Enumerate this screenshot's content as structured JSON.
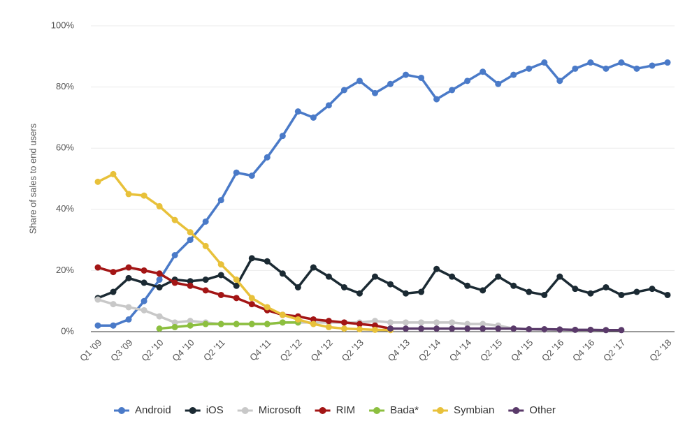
{
  "chart_data": {
    "type": "line",
    "y_label": "Share of sales to end users",
    "categories": [
      "Q1 '09",
      null,
      "Q3 '09",
      null,
      "Q2 '10",
      null,
      "Q4 '10",
      null,
      "Q2 '11",
      null,
      null,
      "Q4 '11",
      null,
      "Q2 '12",
      null,
      "Q4 '12",
      null,
      "Q2 '13",
      null,
      null,
      "Q4 '13",
      null,
      "Q2 '14",
      null,
      "Q4 '14",
      null,
      "Q2 '15",
      null,
      "Q4 '15",
      null,
      "Q2 '16",
      null,
      "Q4 '16",
      null,
      "Q2 '17",
      null,
      null,
      "Q2 '18"
    ],
    "ylim": [
      0,
      100
    ],
    "yticks": [
      {
        "value": 0,
        "label": "0%"
      },
      {
        "value": 20,
        "label": "20%"
      },
      {
        "value": 40,
        "label": "40%"
      },
      {
        "value": 60,
        "label": "60%"
      },
      {
        "value": 80,
        "label": "80%"
      },
      {
        "value": 100,
        "label": "100%"
      }
    ],
    "grid": true,
    "legend": "bottom",
    "series": [
      {
        "name": "Android",
        "color": "#4a7ac8",
        "values": [
          2,
          2,
          4,
          10,
          17,
          25,
          30,
          36,
          43,
          52,
          51,
          57,
          64,
          72,
          70,
          74,
          79,
          82,
          78,
          81,
          84,
          83,
          76,
          79,
          82,
          85,
          81,
          84,
          86,
          88,
          82,
          86,
          88,
          86,
          88,
          86,
          87,
          88
        ]
      },
      {
        "name": "iOS",
        "color": "#1b2a33",
        "values": [
          11,
          13,
          17.5,
          16,
          14.5,
          17,
          16.5,
          17,
          18.5,
          15,
          24,
          23,
          19,
          14.5,
          21,
          18,
          14.5,
          12.5,
          18,
          15.5,
          12.5,
          13,
          20.5,
          18,
          15,
          13.5,
          18,
          15,
          13,
          12,
          18,
          14,
          12.5,
          14.5,
          12,
          13,
          14,
          12
        ]
      },
      {
        "name": "Microsoft",
        "color": "#c8c8c8",
        "values": [
          10.5,
          9,
          8,
          7,
          5,
          3,
          3.5,
          3,
          2.5,
          2.5,
          2.5,
          2.5,
          3,
          3,
          3,
          3,
          3,
          3,
          3.5,
          3,
          3,
          3,
          3,
          3,
          2.5,
          2.5,
          2,
          1,
          0.8,
          0.6,
          0.5,
          null,
          null,
          null,
          null,
          null,
          null,
          null
        ]
      },
      {
        "name": "RIM",
        "color": "#a31515",
        "values": [
          21,
          19.5,
          21,
          20,
          19,
          16,
          15,
          13.5,
          12,
          11,
          9,
          7,
          5.5,
          5,
          4,
          3.5,
          3,
          2.5,
          2,
          1,
          null,
          null,
          null,
          null,
          null,
          null,
          null,
          null,
          null,
          null,
          null,
          null,
          null,
          null,
          null,
          null,
          null,
          null
        ]
      },
      {
        "name": "Bada*",
        "color": "#8cbf3f",
        "values": [
          null,
          null,
          null,
          null,
          1,
          1.5,
          2,
          2.5,
          2.5,
          2.5,
          2.5,
          2.5,
          3,
          3,
          null,
          null,
          null,
          null,
          null,
          null,
          null,
          null,
          null,
          null,
          null,
          null,
          null,
          null,
          null,
          null,
          null,
          null,
          null,
          null,
          null,
          null,
          null,
          null
        ]
      },
      {
        "name": "Symbian",
        "color": "#e8c13a",
        "values": [
          49,
          51.5,
          45,
          44.5,
          41,
          36.5,
          32.5,
          28,
          22,
          17,
          11,
          8,
          5.5,
          4,
          2.5,
          1.5,
          1,
          0.8,
          0.6,
          0.5,
          null,
          null,
          null,
          null,
          null,
          null,
          null,
          null,
          null,
          null,
          null,
          null,
          null,
          null,
          null,
          null,
          null,
          null
        ]
      },
      {
        "name": "Other",
        "color": "#5a3a6a",
        "values": [
          null,
          null,
          null,
          null,
          null,
          null,
          null,
          null,
          null,
          null,
          null,
          null,
          null,
          null,
          null,
          null,
          null,
          null,
          null,
          1,
          1,
          1,
          1,
          1,
          1,
          1,
          1,
          1,
          0.8,
          0.8,
          0.7,
          0.6,
          0.6,
          0.5,
          0.5,
          null,
          null,
          null
        ]
      }
    ]
  }
}
